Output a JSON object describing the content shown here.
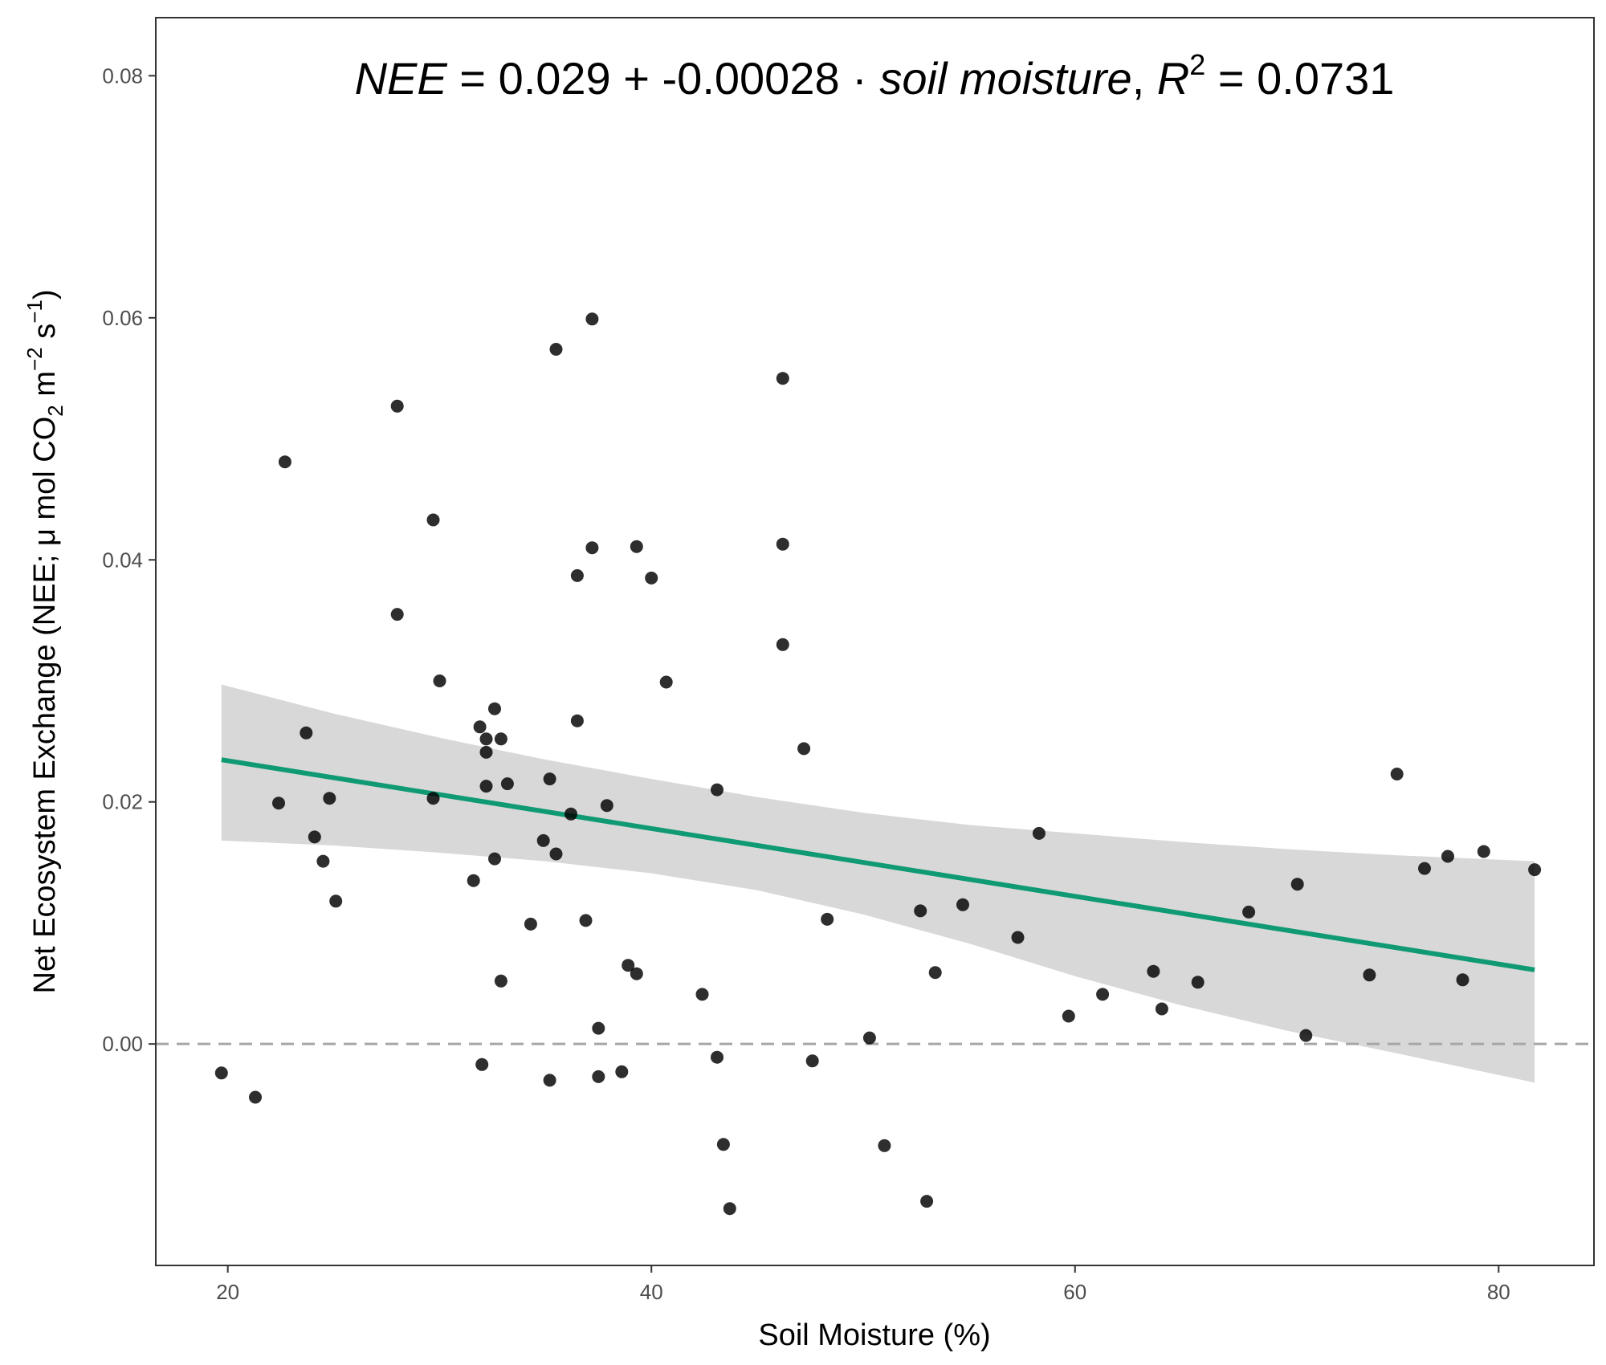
{
  "chart_data": {
    "type": "scatter",
    "title": {
      "nee": "NEE",
      "eq": " = ",
      "intercept": "0.029",
      "plus": " + ",
      "slope": "-0.00028",
      "dot": " · ",
      "var": "soil moisture",
      "comma": ",  ",
      "r": "R",
      "r_sup": "2",
      "eq2": " = ",
      "r2_value": "0.0731"
    },
    "xlabel": "Soil Moisture (%)",
    "ylabel": {
      "part1": "Net Ecosystem Exchange (NEE; ",
      "mu": "μ",
      "part2": " mol CO",
      "sub2": "2",
      "part3": " m",
      "sup_m": "−2",
      "part4": " s",
      "sup_s": "−1",
      "part5": ")"
    },
    "xlim": [
      16.6,
      84.5
    ],
    "ylim": [
      -0.0183,
      0.0848
    ],
    "x_ticks": [
      20,
      40,
      60,
      80
    ],
    "y_ticks": [
      0.0,
      0.02,
      0.04,
      0.06,
      0.08
    ],
    "x_tick_labels": [
      "20",
      "40",
      "60",
      "80"
    ],
    "y_tick_labels": [
      "0.00",
      "0.02",
      "0.04",
      "0.06",
      "0.08"
    ],
    "grid": false,
    "reference_line": {
      "y": 0,
      "style": "dashed",
      "color": "#a6a6a6"
    },
    "regression": {
      "intercept": 0.029,
      "slope": -0.00028,
      "x_range": [
        19.7,
        81.7
      ],
      "color": "#109a74"
    },
    "confidence_band": {
      "color": "#d4d4d4",
      "x": [
        19.7,
        25,
        30,
        35,
        40,
        45,
        50,
        55,
        60,
        65,
        70,
        75,
        81.7
      ],
      "upper": [
        0.0297,
        0.0273,
        0.0253,
        0.0235,
        0.0219,
        0.0204,
        0.0191,
        0.0181,
        0.0174,
        0.0167,
        0.0161,
        0.0156,
        0.0151
      ],
      "lower": [
        0.0168,
        0.0164,
        0.0158,
        0.0151,
        0.0141,
        0.0127,
        0.0107,
        0.0083,
        0.0056,
        0.0032,
        0.0011,
        -0.0007,
        -0.0032
      ]
    },
    "point_color": "#000000",
    "points": [
      [
        19.7,
        -0.0024
      ],
      [
        21.3,
        -0.0044
      ],
      [
        22.4,
        0.0199
      ],
      [
        22.7,
        0.0481
      ],
      [
        23.7,
        0.0257
      ],
      [
        24.1,
        0.0171
      ],
      [
        24.5,
        0.0151
      ],
      [
        24.8,
        0.0203
      ],
      [
        25.1,
        0.0118
      ],
      [
        28.0,
        0.0527
      ],
      [
        28.0,
        0.0355
      ],
      [
        29.7,
        0.0433
      ],
      [
        29.7,
        0.0203
      ],
      [
        30.0,
        0.03
      ],
      [
        31.6,
        0.0135
      ],
      [
        31.9,
        0.0262
      ],
      [
        32.0,
        -0.0017
      ],
      [
        32.2,
        0.0252
      ],
      [
        32.2,
        0.0241
      ],
      [
        32.2,
        0.0213
      ],
      [
        32.6,
        0.0277
      ],
      [
        32.6,
        0.0153
      ],
      [
        32.9,
        0.0252
      ],
      [
        32.9,
        0.0052
      ],
      [
        33.2,
        0.0215
      ],
      [
        34.3,
        0.0099
      ],
      [
        34.9,
        0.0168
      ],
      [
        35.2,
        0.0219
      ],
      [
        35.2,
        -0.003
      ],
      [
        35.5,
        0.0574
      ],
      [
        35.5,
        0.0157
      ],
      [
        36.2,
        0.019
      ],
      [
        36.5,
        0.0387
      ],
      [
        36.5,
        0.0267
      ],
      [
        36.9,
        0.0102
      ],
      [
        37.2,
        0.0599
      ],
      [
        37.2,
        0.041
      ],
      [
        37.5,
        0.0013
      ],
      [
        37.5,
        -0.0027
      ],
      [
        37.9,
        0.0197
      ],
      [
        38.6,
        -0.0023
      ],
      [
        38.9,
        0.0065
      ],
      [
        39.3,
        0.0411
      ],
      [
        39.3,
        0.0058
      ],
      [
        40.0,
        0.0385
      ],
      [
        40.7,
        0.0299
      ],
      [
        42.4,
        0.0041
      ],
      [
        43.1,
        0.021
      ],
      [
        43.1,
        -0.0011
      ],
      [
        43.4,
        -0.0083
      ],
      [
        43.7,
        -0.0136
      ],
      [
        46.2,
        0.055
      ],
      [
        46.2,
        0.0413
      ],
      [
        46.2,
        0.033
      ],
      [
        47.2,
        0.0244
      ],
      [
        47.6,
        -0.0014
      ],
      [
        48.3,
        0.0103
      ],
      [
        50.3,
        0.0005
      ],
      [
        51.0,
        -0.0084
      ],
      [
        52.7,
        0.011
      ],
      [
        53.0,
        -0.013
      ],
      [
        53.4,
        0.0059
      ],
      [
        54.7,
        0.0115
      ],
      [
        57.3,
        0.0088
      ],
      [
        58.3,
        0.0174
      ],
      [
        59.7,
        0.0023
      ],
      [
        61.3,
        0.0041
      ],
      [
        63.7,
        0.006
      ],
      [
        64.1,
        0.0029
      ],
      [
        65.8,
        0.0051
      ],
      [
        68.2,
        0.0109
      ],
      [
        70.5,
        0.0132
      ],
      [
        70.9,
        0.0007
      ],
      [
        73.9,
        0.0057
      ],
      [
        75.2,
        0.0223
      ],
      [
        76.5,
        0.0145
      ],
      [
        77.6,
        0.0155
      ],
      [
        78.3,
        0.0053
      ],
      [
        79.3,
        0.0159
      ],
      [
        81.7,
        0.0144
      ]
    ]
  }
}
